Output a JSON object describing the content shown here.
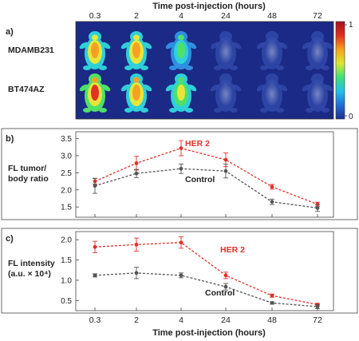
{
  "figure": {
    "top_axis_label": "Time post-injection (hours)",
    "bottom_axis_label": "Time post-injection (hours)",
    "time_ticks": [
      "0.3",
      "2",
      "4",
      "24",
      "48",
      "72"
    ]
  },
  "panel_a": {
    "label": "a)",
    "rows": [
      {
        "name": "MDAMB231",
        "intensities": [
          0.85,
          0.8,
          0.55,
          0.25,
          0.18,
          0.12
        ]
      },
      {
        "name": "BT474AZ",
        "intensities": [
          0.95,
          0.9,
          0.65,
          0.3,
          0.2,
          0.14
        ]
      }
    ],
    "colorbar": {
      "max_label": "1",
      "min_label": "0",
      "colors": [
        "#1a2f8f",
        "#1f6fd6",
        "#22c2e8",
        "#3fe07a",
        "#d8e832",
        "#f6a21e",
        "#e0301e",
        "#a8101a"
      ]
    }
  },
  "chart_data": [
    {
      "type": "line",
      "panel": "b)",
      "ylabel": "FL tumor/ body ratio",
      "xlabel": "Time post-injection (hours)",
      "categories": [
        "0.3",
        "2",
        "4",
        "24",
        "48",
        "72"
      ],
      "ylim": [
        1.2,
        3.7
      ],
      "yticks": [
        "1.5",
        "2.0",
        "2.5",
        "3.0",
        "3.5"
      ],
      "series": [
        {
          "name": "HER 2",
          "color": "#e0312b",
          "values": [
            2.25,
            2.78,
            3.22,
            2.88,
            2.09,
            1.58
          ],
          "errors": [
            0.08,
            0.2,
            0.22,
            0.2,
            0.07,
            0.06
          ]
        },
        {
          "name": "Control",
          "color": "#555555",
          "values": [
            2.12,
            2.48,
            2.62,
            2.55,
            1.65,
            1.47
          ],
          "errors": [
            0.22,
            0.12,
            0.14,
            0.2,
            0.08,
            0.1
          ]
        }
      ]
    },
    {
      "type": "line",
      "panel": "c)",
      "ylabel": "FL intensity (a.u. × 10⁴)",
      "xlabel": "Time post-injection (hours)",
      "categories": [
        "0.3",
        "2",
        "4",
        "24",
        "48",
        "72"
      ],
      "ylim": [
        0.25,
        2.2
      ],
      "yticks": [
        "0.5",
        "1.0",
        "1.5",
        "2.0"
      ],
      "series": [
        {
          "name": "HER 2",
          "color": "#e0312b",
          "values": [
            1.82,
            1.88,
            1.93,
            1.12,
            0.62,
            0.4
          ],
          "errors": [
            0.14,
            0.16,
            0.14,
            0.08,
            0.04,
            0.03
          ]
        },
        {
          "name": "Control",
          "color": "#555555",
          "values": [
            1.12,
            1.18,
            1.12,
            0.84,
            0.44,
            0.35
          ],
          "errors": [
            0.04,
            0.14,
            0.06,
            0.08,
            0.03,
            0.05
          ]
        }
      ]
    }
  ]
}
